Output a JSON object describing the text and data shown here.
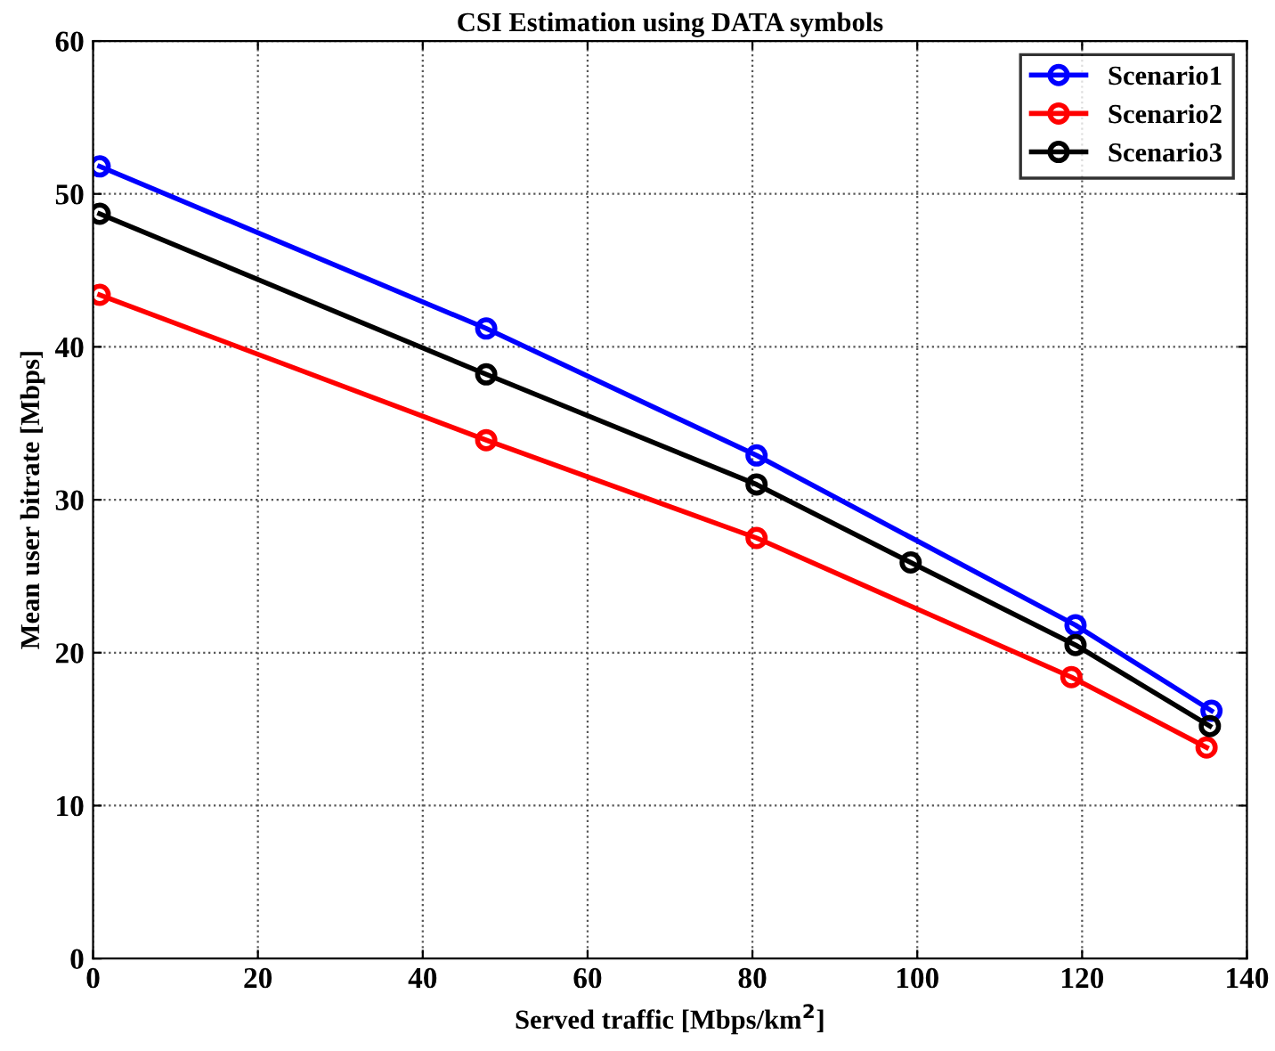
{
  "chart_data": {
    "type": "line",
    "title": "CSI Estimation using DATA symbols",
    "xlabel": "Served traffic [Mbps/km$^{2}$]",
    "ylabel": "Mean user bitrate [Mbps]",
    "series": [
      {
        "name": "Scenario1",
        "color": "#0000ff",
        "x": [
          0.8,
          47.7,
          80.5,
          119.2,
          135.7
        ],
        "values": [
          51.8,
          41.2,
          32.9,
          21.8,
          16.2
        ]
      },
      {
        "name": "Scenario2",
        "color": "#ff0000",
        "x": [
          0.8,
          47.7,
          80.5,
          118.7,
          135.1
        ],
        "values": [
          43.4,
          33.9,
          27.5,
          18.4,
          13.8
        ]
      },
      {
        "name": "Scenario3",
        "color": "#000000",
        "x": [
          0.8,
          47.7,
          80.5,
          99.2,
          119.2,
          135.5
        ],
        "values": [
          48.7,
          38.2,
          31.0,
          25.9,
          20.5,
          15.2
        ]
      }
    ],
    "xlim": [
      0,
      140
    ],
    "xticks": [
      0,
      20,
      40,
      60,
      80,
      100,
      120,
      140
    ],
    "ylim": [
      0,
      60
    ],
    "yticks": [
      0,
      10,
      20,
      30,
      40,
      50,
      60
    ],
    "grid": true,
    "legend": "top right",
    "marker": "circle",
    "line_style": "solid"
  }
}
